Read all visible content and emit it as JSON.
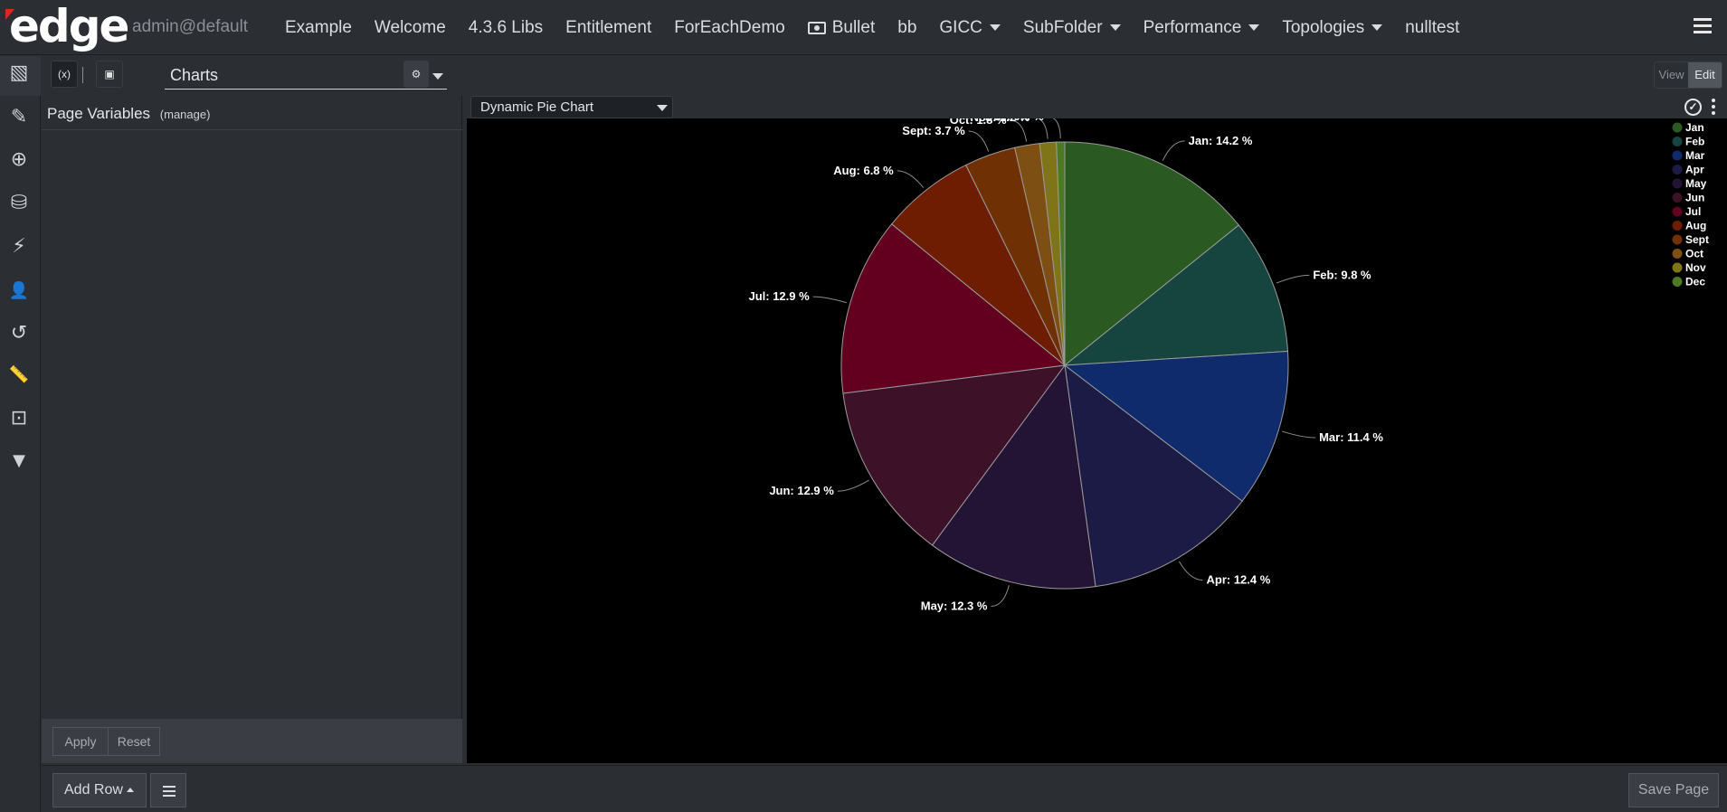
{
  "header": {
    "logo_text": "edge",
    "user": "admin@default",
    "nav": [
      {
        "label": "Example",
        "dropdown": false
      },
      {
        "label": "Welcome",
        "dropdown": false
      },
      {
        "label": "4.3.6 Libs",
        "dropdown": false
      },
      {
        "label": "Entitlement",
        "dropdown": false
      },
      {
        "label": "ForEachDemo",
        "dropdown": false
      },
      {
        "label": "Bullet",
        "dropdown": false,
        "icon": "money-bill-icon"
      },
      {
        "label": "bb",
        "dropdown": false
      },
      {
        "label": "GICC",
        "dropdown": true
      },
      {
        "label": "SubFolder",
        "dropdown": true
      },
      {
        "label": "Performance",
        "dropdown": true
      },
      {
        "label": "Topologies",
        "dropdown": true
      },
      {
        "label": "nulltest",
        "dropdown": false
      }
    ]
  },
  "sidebar": {
    "icons": [
      "pages-icon",
      "edit-page-icon",
      "add-page-icon",
      "data-search-icon",
      "plugin-icon",
      "user-icon",
      "history-icon",
      "ruler-icon",
      "variables-icon",
      "filter-icon"
    ]
  },
  "toolbar": {
    "page_name": "Charts",
    "view_label": "View",
    "edit_label": "Edit",
    "mode": "Edit"
  },
  "left_panel": {
    "title": "Page Variables",
    "manage_label": "(manage)",
    "apply_label": "Apply",
    "reset_label": "Reset"
  },
  "chart_panel": {
    "selected_chart": "Dynamic Pie Chart"
  },
  "footer": {
    "add_row_label": "Add Row",
    "save_label": "Save Page"
  },
  "colors": {
    "background": "#2b2e33",
    "chart_background": "#000000"
  },
  "chart_data": {
    "type": "pie",
    "title": "",
    "legend_placement": "top-right",
    "slices": [
      {
        "label": "Jan",
        "value": 14.2,
        "color": "#2a5a22"
      },
      {
        "label": "Feb",
        "value": 9.8,
        "color": "#16443f"
      },
      {
        "label": "Mar",
        "value": 11.4,
        "color": "#0f2b6c"
      },
      {
        "label": "Apr",
        "value": 12.4,
        "color": "#1c1b46"
      },
      {
        "label": "May",
        "value": 12.3,
        "color": "#231436"
      },
      {
        "label": "Jun",
        "value": 12.9,
        "color": "#3d1128"
      },
      {
        "label": "Jul",
        "value": 12.9,
        "color": "#630020"
      },
      {
        "label": "Aug",
        "value": 6.8,
        "color": "#6f1d02"
      },
      {
        "label": "Sept",
        "value": 3.7,
        "color": "#6f3104"
      },
      {
        "label": "Oct",
        "value": 1.8,
        "color": "#7e4f13"
      },
      {
        "label": "Nov",
        "value": 1.2,
        "color": "#7f7417"
      },
      {
        "label": "Dec",
        "value": 0.6,
        "color": "#4c7a22"
      }
    ]
  }
}
